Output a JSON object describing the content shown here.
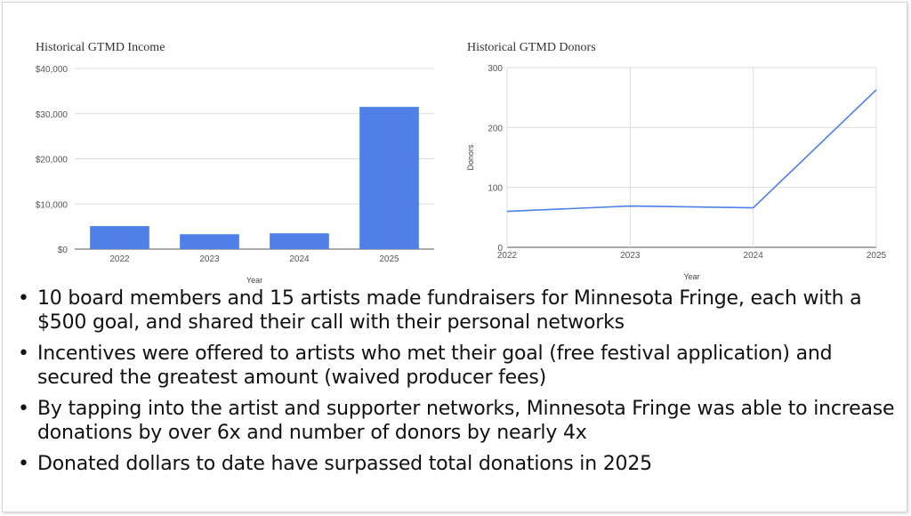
{
  "chart_data": [
    {
      "type": "bar",
      "title": "Historical GTMD Income",
      "categories": [
        "2022",
        "2023",
        "2024",
        "2025"
      ],
      "values": [
        5100,
        3300,
        3500,
        31500
      ],
      "xlabel": "Year",
      "ylabel": "",
      "ylim": [
        0,
        40000
      ],
      "yticks": [
        "$0",
        "$10,000",
        "$20,000",
        "$30,000",
        "$40,000"
      ],
      "grid": true,
      "color": "#4e80e8"
    },
    {
      "type": "line",
      "title": "Historical GTMD Donors",
      "x": [
        "2022",
        "2023",
        "2024",
        "2025"
      ],
      "values": [
        60,
        69,
        66,
        263
      ],
      "xlabel": "Year",
      "ylabel": "Donors",
      "ylim": [
        0,
        300
      ],
      "yticks": [
        "0",
        "100",
        "200",
        "300"
      ],
      "grid": true,
      "color": "#4e80e8"
    }
  ],
  "bullets": [
    "10 board members and 15 artists made fundraisers for Minnesota Fringe, each with a $500 goal, and shared their call with their personal networks",
    "Incentives were offered to artists who met their goal (free festival application) and secured the greatest amount (waived producer fees)",
    "By tapping into the artist and supporter networks, Minnesota Fringe was able to increase donations by over 6x and number of donors by nearly 4x",
    "Donated dollars to date have surpassed total donations in 2025"
  ],
  "bullet_symbol": "•"
}
